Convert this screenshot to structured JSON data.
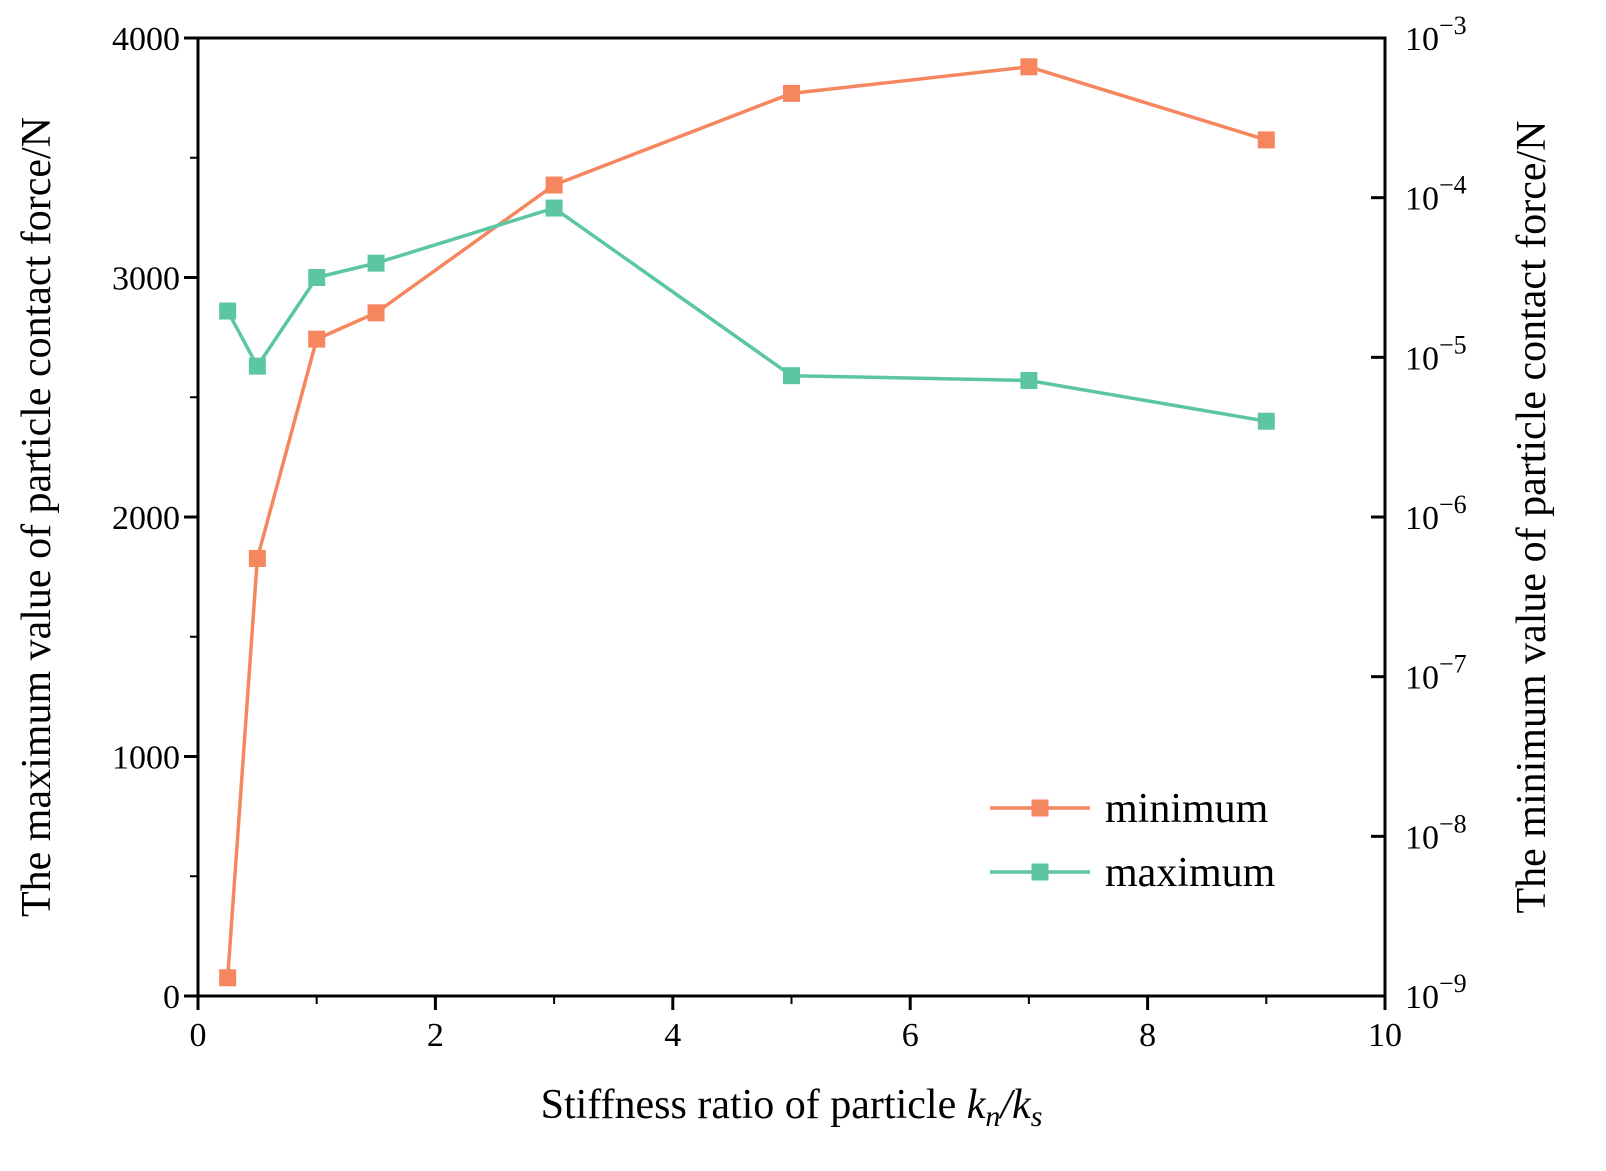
{
  "chart_data": {
    "type": "line",
    "x": [
      0.25,
      0.5,
      1,
      1.5,
      3,
      5,
      7,
      9
    ],
    "xlabel": "Stiffness ratio of particle kₙ/kₛ",
    "xlabel_parts": {
      "prefix": "Stiffness ratio of particle ",
      "k1": "k",
      "sub1": "n",
      "slash": "/",
      "k2": "k",
      "sub2": "s"
    },
    "xlim": [
      0,
      10
    ],
    "xticks": [
      0,
      2,
      4,
      6,
      8,
      10
    ],
    "xtick_labels": [
      "0",
      "2",
      "4",
      "6",
      "8",
      "10"
    ],
    "y_left": {
      "label": "The maximum value of particle contact force/N",
      "lim": [
        0,
        4000
      ],
      "ticks": [
        0,
        1000,
        2000,
        3000,
        4000
      ],
      "tick_labels": [
        "0",
        "1000",
        "2000",
        "3000",
        "4000"
      ]
    },
    "y_right": {
      "label": "The minimum value of particle contact force/N",
      "scale": "log",
      "lim": [
        1e-09,
        0.001
      ],
      "ticks": [
        1e-09,
        1e-08,
        1e-07,
        1e-06,
        1e-05,
        0.0001,
        0.001
      ],
      "tick_base": "10",
      "tick_exponents": [
        "−9",
        "−8",
        "−7",
        "−6",
        "−5",
        "−4",
        "−3"
      ]
    },
    "series": [
      {
        "name": "minimum",
        "axis": "right",
        "color": "#F5865E",
        "values": [
          1.3e-09,
          5.5e-07,
          1.3e-05,
          1.9e-05,
          0.00012,
          0.00045,
          0.00066,
          0.00023
        ]
      },
      {
        "name": "maximum",
        "axis": "left",
        "color": "#5CC6A4",
        "values": [
          2860,
          2630,
          3000,
          3060,
          3290,
          2590,
          2570,
          2400
        ]
      }
    ],
    "legend": {
      "position": "bottom-right",
      "entries": [
        "minimum",
        "maximum"
      ]
    }
  }
}
